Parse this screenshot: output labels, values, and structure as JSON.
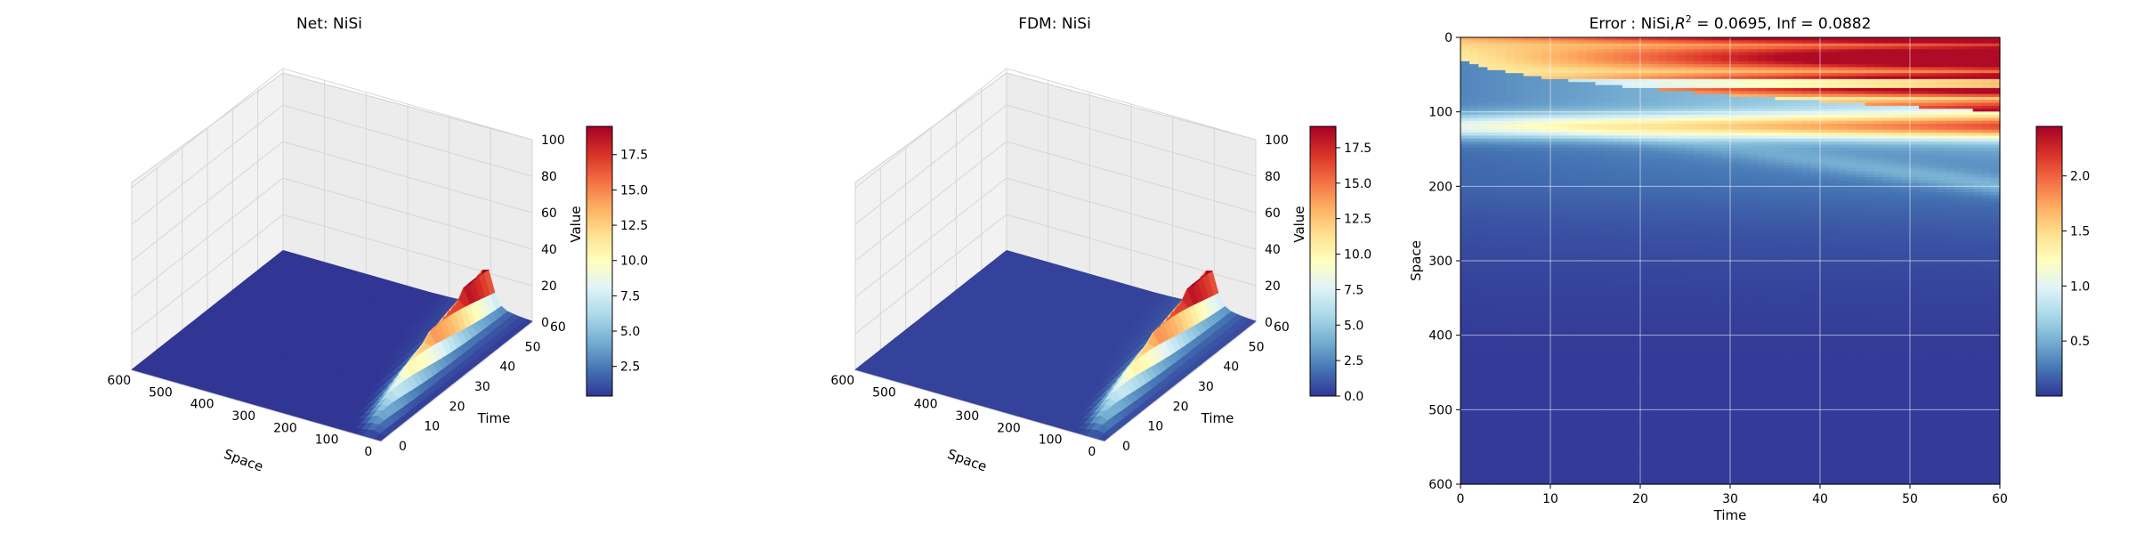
{
  "figure": {
    "background": "#ffffff"
  },
  "colormap": [
    "#313695",
    "#4575b4",
    "#74add1",
    "#abd9e9",
    "#e0f3f8",
    "#ffffbf",
    "#fee090",
    "#fdae61",
    "#f46d43",
    "#d73027",
    "#a50026"
  ],
  "chart_data": [
    {
      "type": "surface",
      "title": "Net: NiSi",
      "xlabel": "Space",
      "ylabel": "Time",
      "zlabel": "Value",
      "xlim": [
        0,
        600
      ],
      "ylim": [
        0,
        60
      ],
      "zlim": [
        0,
        100
      ],
      "xticks": [
        "0",
        "100",
        "200",
        "300",
        "400",
        "500",
        "600"
      ],
      "yticks": [
        "0",
        "10",
        "20",
        "30",
        "40",
        "50",
        "60"
      ],
      "zticks": [
        "0",
        "20",
        "40",
        "60",
        "80",
        "100"
      ],
      "peak_value": 19.5,
      "colorbar": {
        "min": 0.4,
        "max": 19.5,
        "ticks": [
          "2.5",
          "5.0",
          "7.5",
          "10.0",
          "12.5",
          "15.0",
          "17.5"
        ],
        "tick_values": [
          2.5,
          5,
          7.5,
          10,
          12.5,
          15,
          17.5
        ]
      }
    },
    {
      "type": "surface",
      "title": "FDM: NiSi",
      "xlabel": "Space",
      "ylabel": "Time",
      "zlabel": "Value",
      "xlim": [
        0,
        600
      ],
      "ylim": [
        0,
        60
      ],
      "zlim": [
        0,
        100
      ],
      "xticks": [
        "0",
        "100",
        "200",
        "300",
        "400",
        "500",
        "600"
      ],
      "yticks": [
        "0",
        "10",
        "20",
        "30",
        "40",
        "50",
        "60"
      ],
      "zticks": [
        "0",
        "20",
        "40",
        "60",
        "80",
        "100"
      ],
      "peak_value": 19,
      "colorbar": {
        "min": 0.0,
        "max": 19.0,
        "ticks": [
          "0.0",
          "2.5",
          "5.0",
          "7.5",
          "10.0",
          "12.5",
          "15.0",
          "17.5"
        ],
        "tick_values": [
          0,
          2.5,
          5,
          7.5,
          10,
          12.5,
          15,
          17.5
        ]
      }
    },
    {
      "type": "heatmap",
      "title_prefix": "Error : NiSi,",
      "title_r2": "R",
      "title_sup": "2",
      "title_suffix": " = 0.0695, Inf = 0.0882",
      "xlabel": "Time",
      "ylabel": "Space",
      "xlim": [
        0,
        60
      ],
      "ylim": [
        600,
        0
      ],
      "xticks": [
        "0",
        "10",
        "20",
        "30",
        "40",
        "50",
        "60"
      ],
      "yticks": [
        "0",
        "100",
        "200",
        "300",
        "400",
        "500",
        "600"
      ],
      "grid": true,
      "colorbar": {
        "min": 0.0,
        "max": 2.45,
        "ticks": [
          "0.5",
          "1.0",
          "1.5",
          "2.0"
        ],
        "tick_values": [
          0.5,
          1.0,
          1.5,
          2.0
        ]
      }
    }
  ]
}
